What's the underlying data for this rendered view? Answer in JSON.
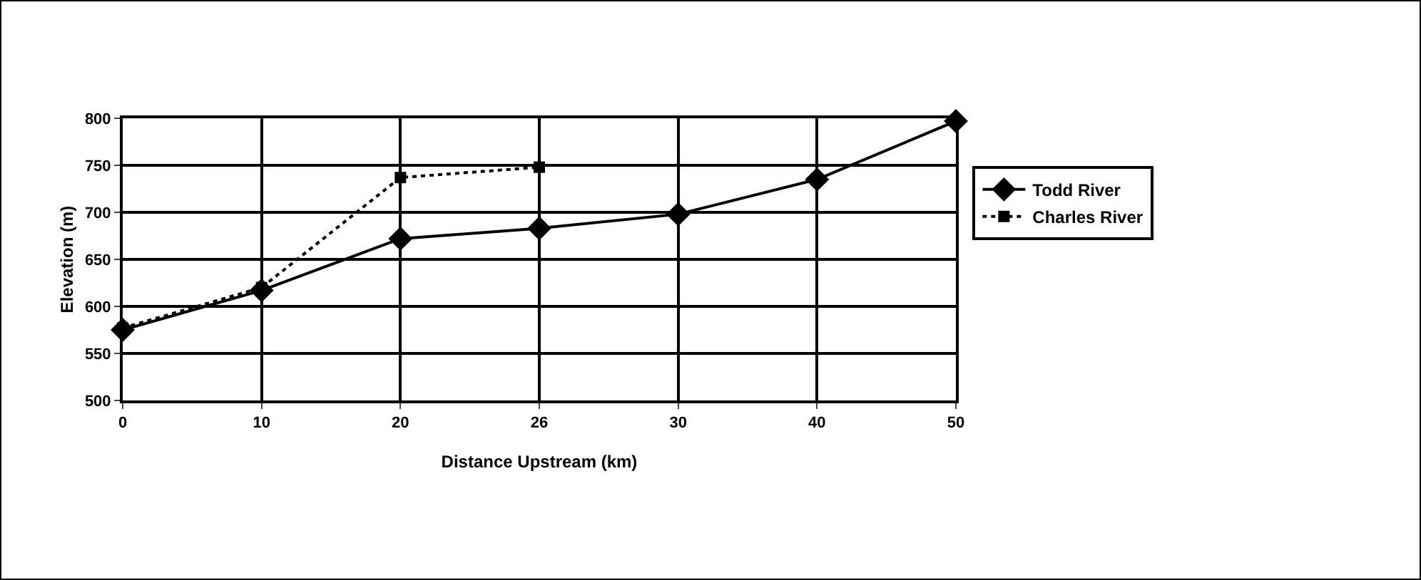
{
  "chart_data": {
    "type": "line",
    "xlabel": "Distance Upstream (km)",
    "ylabel": "Elevation (m)",
    "categories": [
      "0",
      "10",
      "20",
      "26",
      "30",
      "40",
      "50"
    ],
    "series": [
      {
        "name": "Todd River",
        "color": "#000000",
        "marker": "diamond",
        "line_style": "solid",
        "values": [
          575,
          617,
          672,
          683,
          698,
          735,
          797
        ]
      },
      {
        "name": "Charles River",
        "color": "#000000",
        "marker": "square",
        "line_style": "dotted",
        "values": [
          577,
          620,
          737,
          748,
          null,
          null,
          null
        ]
      }
    ],
    "ylim": [
      500,
      800
    ],
    "yticks": [
      500,
      550,
      600,
      650,
      700,
      750,
      800
    ],
    "grid": true,
    "legend": "right"
  }
}
